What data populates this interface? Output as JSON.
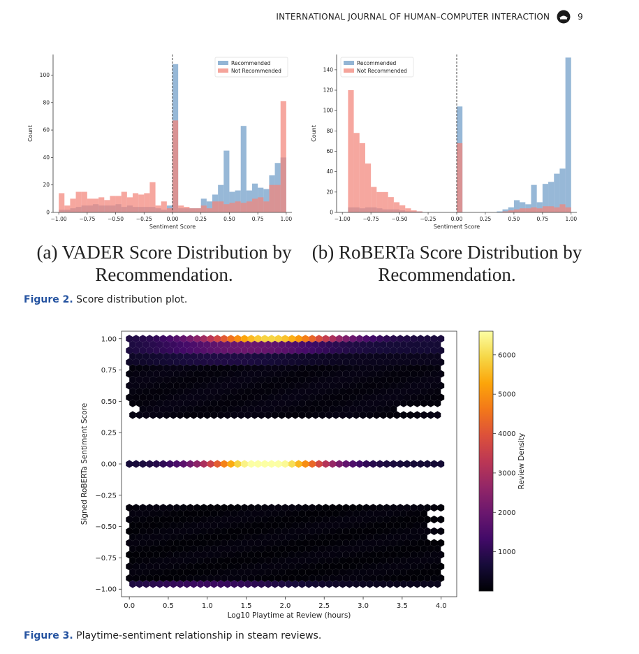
{
  "running_head": {
    "journal": "INTERNATIONAL JOURNAL OF HUMAN–COMPUTER INTERACTION",
    "page": "9",
    "logo_icon": "journal-logo-icon"
  },
  "figure2": {
    "caption_label": "Figure 2.",
    "caption_text": "Score distribution plot.",
    "subcaption_a": "(a) VADER Score Distribution by Recommendation.",
    "subcaption_b": "(b) RoBERTa Score Distribution by Recommendation."
  },
  "figure3": {
    "caption_label": "Figure 3.",
    "caption_text": "Playtime-sentiment relationship in steam reviews."
  },
  "chart_data": [
    {
      "type": "bar",
      "id": "vader",
      "xlabel": "Sentiment Score",
      "ylabel": "Count",
      "xlim": [
        -1.05,
        1.05
      ],
      "ylim": [
        0,
        115
      ],
      "xticks": [
        "−1.00",
        "−0.75",
        "−0.50",
        "−0.25",
        "0.00",
        "0.25",
        "0.50",
        "0.75",
        "1.00"
      ],
      "xtick_values": [
        -1.0,
        -0.75,
        -0.5,
        -0.25,
        0.0,
        0.25,
        0.5,
        0.75,
        1.0
      ],
      "yticks": [
        "0",
        "20",
        "40",
        "60",
        "80",
        "100"
      ],
      "ytick_values": [
        0,
        20,
        40,
        60,
        80,
        100
      ],
      "bin_start": -1.0,
      "bin_width": 0.05,
      "legend_position": "top-right",
      "vline": 0.0,
      "series": [
        {
          "name": "Recommended",
          "color": "#6f9cc7",
          "values": [
            2,
            2,
            3,
            4,
            5,
            5,
            6,
            5,
            5,
            5,
            6,
            4,
            5,
            4,
            4,
            4,
            4,
            3,
            2,
            5,
            108,
            3,
            3,
            3,
            3,
            10,
            8,
            13,
            20,
            45,
            15,
            16,
            63,
            16,
            21,
            18,
            17,
            27,
            36,
            40
          ]
        },
        {
          "name": "Not Recommended",
          "color": "#f2857a",
          "values": [
            14,
            5,
            10,
            15,
            15,
            10,
            10,
            11,
            9,
            12,
            12,
            15,
            11,
            14,
            13,
            14,
            22,
            5,
            8,
            3,
            67,
            5,
            4,
            3,
            3,
            5,
            3,
            8,
            8,
            6,
            7,
            8,
            7,
            8,
            10,
            11,
            8,
            20,
            20,
            81
          ]
        }
      ]
    },
    {
      "type": "bar",
      "id": "roberta",
      "xlabel": "Sentiment Score",
      "ylabel": "Count",
      "xlim": [
        -1.05,
        1.05
      ],
      "ylim": [
        0,
        155
      ],
      "xticks": [
        "−1.00",
        "−0.75",
        "−0.50",
        "−0.25",
        "0.00",
        "0.25",
        "0.50",
        "0.75",
        "1.00"
      ],
      "xtick_values": [
        -1.0,
        -0.75,
        -0.5,
        -0.25,
        0.0,
        0.25,
        0.5,
        0.75,
        1.0
      ],
      "yticks": [
        "0",
        "20",
        "40",
        "60",
        "80",
        "100",
        "120",
        "140"
      ],
      "ytick_values": [
        0,
        20,
        40,
        60,
        80,
        100,
        120,
        140
      ],
      "bin_start": -1.0,
      "bin_width": 0.05,
      "legend_position": "top-left",
      "vline": 0.0,
      "series": [
        {
          "name": "Recommended",
          "color": "#6f9cc7",
          "values": [
            0,
            5,
            5,
            4,
            5,
            5,
            4,
            3,
            3,
            3,
            2,
            1,
            1,
            1,
            0,
            0,
            0,
            0,
            0,
            0,
            104,
            0,
            0,
            0,
            0,
            0,
            0,
            1,
            3,
            5,
            12,
            10,
            8,
            27,
            10,
            28,
            30,
            38,
            43,
            152
          ]
        },
        {
          "name": "Not Recommended",
          "color": "#f2857a",
          "values": [
            0,
            120,
            78,
            68,
            48,
            25,
            20,
            20,
            15,
            10,
            7,
            4,
            2,
            1,
            0,
            0,
            0,
            0,
            0,
            0,
            68,
            0,
            0,
            0,
            0,
            0,
            0,
            0,
            1,
            2,
            3,
            4,
            4,
            5,
            4,
            6,
            6,
            5,
            8,
            5
          ]
        }
      ]
    },
    {
      "type": "heatmap",
      "id": "hexbin",
      "xlabel": "Log10 Playtime at Review (hours)",
      "ylabel": "Signed RoBERTa Sentiment Score",
      "colorbar_label": "Review Density",
      "xlim": [
        -0.1,
        4.2
      ],
      "ylim": [
        -1.06,
        1.06
      ],
      "xticks": [
        "0.0",
        "0.5",
        "1.0",
        "1.5",
        "2.0",
        "2.5",
        "3.0",
        "3.5",
        "4.0"
      ],
      "xtick_values": [
        0.0,
        0.5,
        1.0,
        1.5,
        2.0,
        2.5,
        3.0,
        3.5,
        4.0
      ],
      "yticks": [
        "1.00",
        "0.75",
        "0.50",
        "0.25",
        "0.00",
        "−0.25",
        "−0.50",
        "−0.75",
        "−1.00"
      ],
      "ytick_values": [
        1.0,
        0.75,
        0.5,
        0.25,
        0.0,
        -0.25,
        -0.5,
        -0.75,
        -1.0
      ],
      "colorbar_ticks": [
        "1000",
        "2000",
        "3000",
        "4000",
        "5000",
        "6000"
      ],
      "colorbar_tick_values": [
        1000,
        2000,
        3000,
        4000,
        5000,
        6000
      ],
      "colorbar_range": [
        0,
        6600
      ],
      "colormap": "inferno",
      "bands": [
        {
          "y_from": 0.35,
          "y_to": 1.0,
          "density_peak_x": 1.8,
          "density_peak": 5200
        },
        {
          "y_from": 0.0,
          "y_to": 0.0,
          "density_peak_x": 1.75,
          "density_peak": 6500
        },
        {
          "y_from": -1.0,
          "y_to": -0.35,
          "density_peak_x": 1.0,
          "density_peak": 900
        }
      ]
    }
  ]
}
